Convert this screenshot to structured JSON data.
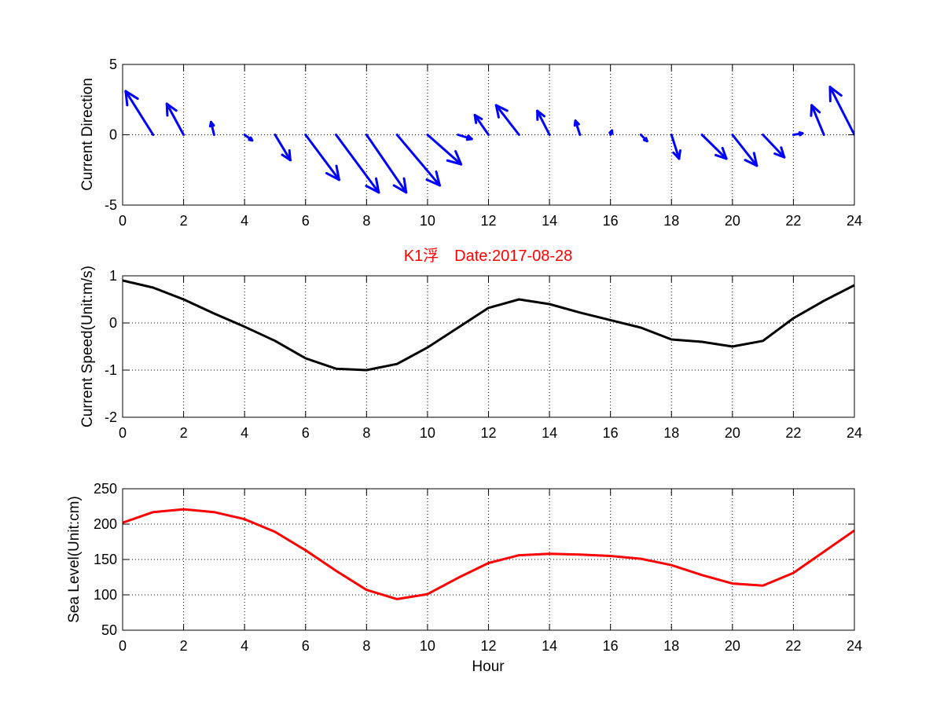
{
  "title": "K1浮　Date:2017-08-28",
  "colors": {
    "direction": "#0000ff",
    "speed": "#000000",
    "sea_level": "#ff0000",
    "title": "#ff0000"
  },
  "chart_data": [
    {
      "type": "quiver",
      "name": "current-direction",
      "title": "",
      "xlabel": "",
      "ylabel": "Current Direction",
      "xlim": [
        0,
        24
      ],
      "ylim": [
        -5,
        5
      ],
      "xticks": [
        0,
        2,
        4,
        6,
        8,
        10,
        12,
        14,
        16,
        18,
        20,
        22,
        24
      ],
      "yticks": [
        -5,
        0,
        5
      ],
      "grid": true,
      "x": [
        1,
        2,
        3,
        4,
        5,
        6,
        7,
        8,
        9,
        10,
        11,
        12,
        13,
        14,
        15,
        16,
        17,
        18,
        19,
        20,
        21,
        22,
        23,
        24
      ],
      "u": [
        -0.9,
        -0.55,
        -0.1,
        0.25,
        0.5,
        1.1,
        1.4,
        1.3,
        1.4,
        1.1,
        0.45,
        -0.45,
        -0.75,
        -0.4,
        -0.15,
        0.05,
        0.2,
        0.25,
        0.8,
        0.8,
        0.7,
        0.3,
        -0.4,
        -0.8
      ],
      "v": [
        3.1,
        2.2,
        0.9,
        -0.4,
        -1.8,
        -3.2,
        -4.1,
        -4.1,
        -3.6,
        -2.1,
        -0.3,
        1.4,
        2.1,
        1.7,
        1.0,
        0.3,
        -0.45,
        -1.7,
        -1.7,
        -2.2,
        -1.6,
        0.1,
        2.1,
        3.4
      ]
    },
    {
      "type": "line",
      "name": "current-speed",
      "title": "",
      "xlabel": "",
      "ylabel": "Current Speed(Unit:m/s)",
      "xlim": [
        0,
        24
      ],
      "ylim": [
        -2,
        1
      ],
      "xticks": [
        0,
        2,
        4,
        6,
        8,
        10,
        12,
        14,
        16,
        18,
        20,
        22,
        24
      ],
      "yticks": [
        -2,
        -1,
        0,
        1
      ],
      "grid": true,
      "x": [
        0,
        1,
        2,
        3,
        4,
        5,
        6,
        7,
        8,
        9,
        10,
        11,
        12,
        13,
        14,
        15,
        16,
        17,
        18,
        19,
        20,
        21,
        22,
        23,
        24
      ],
      "values": [
        0.9,
        0.75,
        0.5,
        0.2,
        -0.08,
        -0.38,
        -0.75,
        -0.97,
        -1.0,
        -0.87,
        -0.52,
        -0.1,
        0.32,
        0.5,
        0.4,
        0.22,
        0.06,
        -0.1,
        -0.35,
        -0.4,
        -0.5,
        -0.38,
        0.1,
        0.47,
        0.8
      ]
    },
    {
      "type": "line",
      "name": "sea-level",
      "title": "",
      "xlabel": "Hour",
      "ylabel": "Sea Level(Unit:cm)",
      "xlim": [
        0,
        24
      ],
      "ylim": [
        50,
        250
      ],
      "xticks": [
        0,
        2,
        4,
        6,
        8,
        10,
        12,
        14,
        16,
        18,
        20,
        22,
        24
      ],
      "yticks": [
        50,
        100,
        150,
        200,
        250
      ],
      "grid": true,
      "x": [
        0,
        1,
        2,
        3,
        4,
        5,
        6,
        7,
        8,
        9,
        10,
        11,
        12,
        13,
        14,
        15,
        16,
        17,
        18,
        19,
        20,
        21,
        22,
        23,
        24
      ],
      "values": [
        202,
        217,
        221,
        217,
        207,
        189,
        163,
        134,
        107,
        94,
        101,
        124,
        145,
        156,
        158,
        157,
        155,
        151,
        142,
        128,
        116,
        113,
        131,
        161,
        191
      ]
    }
  ]
}
